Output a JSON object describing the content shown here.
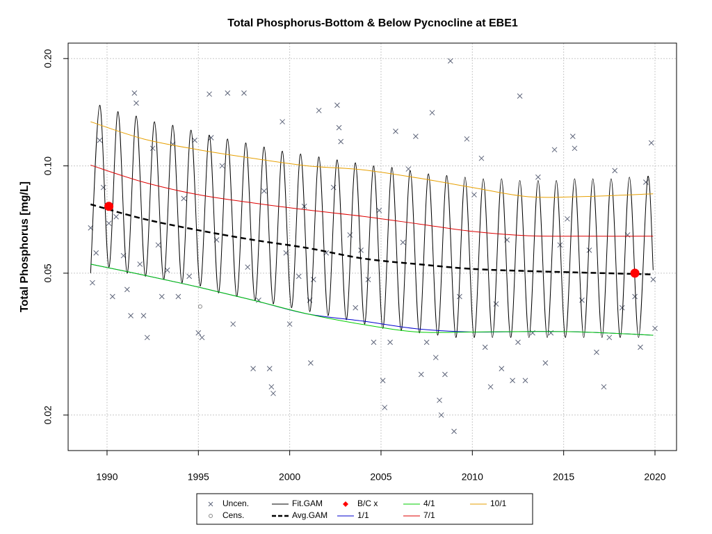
{
  "chart_data": {
    "type": "scatter",
    "title": "Total Phosphorus-Bottom & Below Pycnocline at EBE1",
    "y_label": "Total Phosphorus [mg/L]",
    "xlim": [
      1987.87,
      2021.18
    ],
    "ylim": [
      0.0159,
      0.221
    ],
    "log_y": true,
    "grid": true,
    "legend": "bottom",
    "xticks": [
      1990,
      1995,
      2000,
      2005,
      2010,
      2015,
      2020
    ],
    "yticks": [
      0.02,
      0.05,
      {
        "value": 0.1,
        "label": "0.10"
      },
      {
        "value": 0.2,
        "label": "0.20"
      }
    ],
    "series": [
      {
        "name": "Uncen.",
        "color": "#5c6378",
        "mark": "x",
        "x": [
          1989.1,
          1989.2,
          1989.4,
          1989.6,
          1989.8,
          1990.1,
          1990.3,
          1990.5,
          1990.9,
          1991.1,
          1991.3,
          1991.5,
          1991.6,
          1991.8,
          1992.0,
          1992.2,
          1992.5,
          1992.8,
          1993.0,
          1993.3,
          1993.6,
          1993.9,
          1994.2,
          1994.5,
          1994.8,
          1995.0,
          1995.2,
          1995.6,
          1995.7,
          1996.0,
          1996.3,
          1996.6,
          1996.9,
          1997.5,
          1997.7,
          1998.0,
          1998.3,
          1998.6,
          1998.9,
          1999.0,
          1999.1,
          1999.6,
          1999.8,
          2000.0,
          2000.5,
          2000.8,
          2001.1,
          2001.15,
          2001.3,
          2001.6,
          2002.0,
          2002.4,
          2002.6,
          2002.7,
          2002.8,
          2003.3,
          2003.6,
          2003.9,
          2004.3,
          2004.6,
          2004.9,
          2005.1,
          2005.2,
          2005.5,
          2005.8,
          2006.2,
          2006.5,
          2006.9,
          2007.2,
          2007.5,
          2007.8,
          2008.0,
          2008.2,
          2008.3,
          2008.5,
          2008.8,
          2009.0,
          2009.3,
          2009.7,
          2010.1,
          2010.5,
          2010.7,
          2011.0,
          2011.3,
          2011.6,
          2011.9,
          2012.2,
          2012.5,
          2012.6,
          2012.9,
          2013.3,
          2013.6,
          2014.0,
          2014.3,
          2014.5,
          2014.8,
          2015.2,
          2015.5,
          2015.6,
          2016.0,
          2016.4,
          2016.8,
          2017.2,
          2017.5,
          2017.8,
          2018.2,
          2018.5,
          2018.9,
          2019.2,
          2019.5,
          2019.8,
          2019.9,
          2020.0
        ],
        "values": [
          0.067,
          0.047,
          0.057,
          0.118,
          0.087,
          0.069,
          0.043,
          0.072,
          0.056,
          0.045,
          0.038,
          0.16,
          0.15,
          0.053,
          0.038,
          0.033,
          0.112,
          0.06,
          0.043,
          0.051,
          0.115,
          0.043,
          0.081,
          0.049,
          0.118,
          0.034,
          0.033,
          0.159,
          0.12,
          0.062,
          0.1,
          0.16,
          0.036,
          0.16,
          0.052,
          0.027,
          0.042,
          0.085,
          0.027,
          0.024,
          0.023,
          0.133,
          0.057,
          0.036,
          0.049,
          0.077,
          0.042,
          0.028,
          0.048,
          0.143,
          0.057,
          0.087,
          0.148,
          0.128,
          0.117,
          0.064,
          0.04,
          0.058,
          0.048,
          0.032,
          0.075,
          0.025,
          0.021,
          0.032,
          0.125,
          0.061,
          0.098,
          0.121,
          0.026,
          0.032,
          0.141,
          0.029,
          0.022,
          0.02,
          0.026,
          0.197,
          0.018,
          0.043,
          0.119,
          0.083,
          0.105,
          0.031,
          0.024,
          0.041,
          0.027,
          0.062,
          0.025,
          0.032,
          0.157,
          0.025,
          0.034,
          0.093,
          0.028,
          0.034,
          0.111,
          0.06,
          0.071,
          0.121,
          0.112,
          0.042,
          0.058,
          0.03,
          0.024,
          0.033,
          0.097,
          0.04,
          0.064,
          0.043,
          0.031,
          0.09,
          0.116,
          0.048,
          0.035
        ]
      },
      {
        "name": "Cens.",
        "color": "#888888",
        "mark": "circle",
        "x": [
          1995.1
        ],
        "values": [
          0.0403
        ]
      },
      {
        "name": "Fit.GAM",
        "color": "#000000",
        "mark": "line",
        "x": [
          1989.1,
          1989.6,
          1990.1,
          1990.6,
          1991.1,
          1991.6,
          1992.1,
          1992.6,
          1993.1,
          1993.6,
          1994.1,
          1994.6,
          1995.1,
          1995.6,
          1996.1,
          1996.6,
          1997.1,
          1997.6,
          1998.1,
          1998.6,
          1999.1,
          1999.6,
          2000.1,
          2000.6,
          2001.1,
          2001.6,
          2002.1,
          2002.6,
          2003.1,
          2003.6,
          2004.1,
          2004.6,
          2005.1,
          2005.6,
          2006.1,
          2006.6,
          2007.1,
          2007.6,
          2008.1,
          2008.6,
          2009.1,
          2009.6,
          2010.1,
          2010.6,
          2011.1,
          2011.6,
          2012.1,
          2012.6,
          2013.1,
          2013.6,
          2014.1,
          2014.6,
          2015.1,
          2015.6,
          2016.1,
          2016.6,
          2017.1,
          2017.6,
          2018.1,
          2018.6,
          2019.1,
          2019.6,
          2019.9
        ],
        "values": [
          0.05,
          0.148,
          0.052,
          0.142,
          0.05,
          0.138,
          0.049,
          0.133,
          0.048,
          0.13,
          0.047,
          0.126,
          0.046,
          0.122,
          0.044,
          0.119,
          0.043,
          0.116,
          0.042,
          0.113,
          0.041,
          0.11,
          0.04,
          0.108,
          0.039,
          0.106,
          0.038,
          0.104,
          0.037,
          0.102,
          0.036,
          0.1,
          0.035,
          0.099,
          0.0345,
          0.097,
          0.034,
          0.095,
          0.0335,
          0.094,
          0.033,
          0.093,
          0.033,
          0.092,
          0.033,
          0.092,
          0.033,
          0.091,
          0.033,
          0.091,
          0.033,
          0.091,
          0.033,
          0.092,
          0.033,
          0.092,
          0.033,
          0.092,
          0.033,
          0.093,
          0.033,
          0.093,
          0.051
        ]
      },
      {
        "name": "Avg.GAM",
        "color": "#000000",
        "mark": "dashed",
        "x": [
          1989.1,
          1992,
          1995,
          1998,
          2001,
          2004,
          2007,
          2010,
          2013,
          2016,
          2019.9
        ],
        "values": [
          0.078,
          0.071,
          0.066,
          0.062,
          0.0588,
          0.055,
          0.053,
          0.0514,
          0.0507,
          0.0502,
          0.0496
        ]
      },
      {
        "name": "B/C x",
        "color": "#ff0000",
        "mark": "dot",
        "x": [
          1990.1,
          2018.9
        ],
        "values": [
          0.077,
          0.05
        ]
      },
      {
        "name": "1/1",
        "color": "#0000cd",
        "mark": "line",
        "x": [
          1989.1,
          1992,
          1995,
          1998,
          2001,
          2004,
          2007,
          2010,
          2013,
          2016,
          2019.9
        ],
        "values": [
          0.053,
          0.0494,
          0.0457,
          0.042,
          0.0384,
          0.0367,
          0.0349,
          0.0342,
          0.0343,
          0.0342,
          0.0335
        ]
      },
      {
        "name": "4/1",
        "color": "#00cc00",
        "mark": "line",
        "x": [
          1989.1,
          1992,
          1995,
          1998,
          2001,
          2004,
          2007,
          2010,
          2013,
          2016,
          2019.9
        ],
        "values": [
          0.053,
          0.0494,
          0.0457,
          0.042,
          0.0384,
          0.0359,
          0.0342,
          0.0342,
          0.0343,
          0.0342,
          0.0335
        ]
      },
      {
        "name": "7/1",
        "color": "#dd0000",
        "mark": "line",
        "x": [
          1989.1,
          1992,
          1995,
          1998,
          2001,
          2004,
          2007,
          2010,
          2013,
          2016,
          2019.9
        ],
        "values": [
          0.1005,
          0.09,
          0.083,
          0.0787,
          0.0752,
          0.0722,
          0.0688,
          0.0655,
          0.0637,
          0.0635,
          0.0635
        ]
      },
      {
        "name": "10/1",
        "color": "#e69f00",
        "mark": "line",
        "x": [
          1989.1,
          1992,
          1995,
          1998,
          2001,
          2004,
          2007,
          2010,
          2013,
          2016,
          2019.9
        ],
        "values": [
          0.133,
          0.119,
          0.111,
          0.105,
          0.1,
          0.0975,
          0.0925,
          0.087,
          0.082,
          0.082,
          0.0835
        ]
      }
    ]
  }
}
